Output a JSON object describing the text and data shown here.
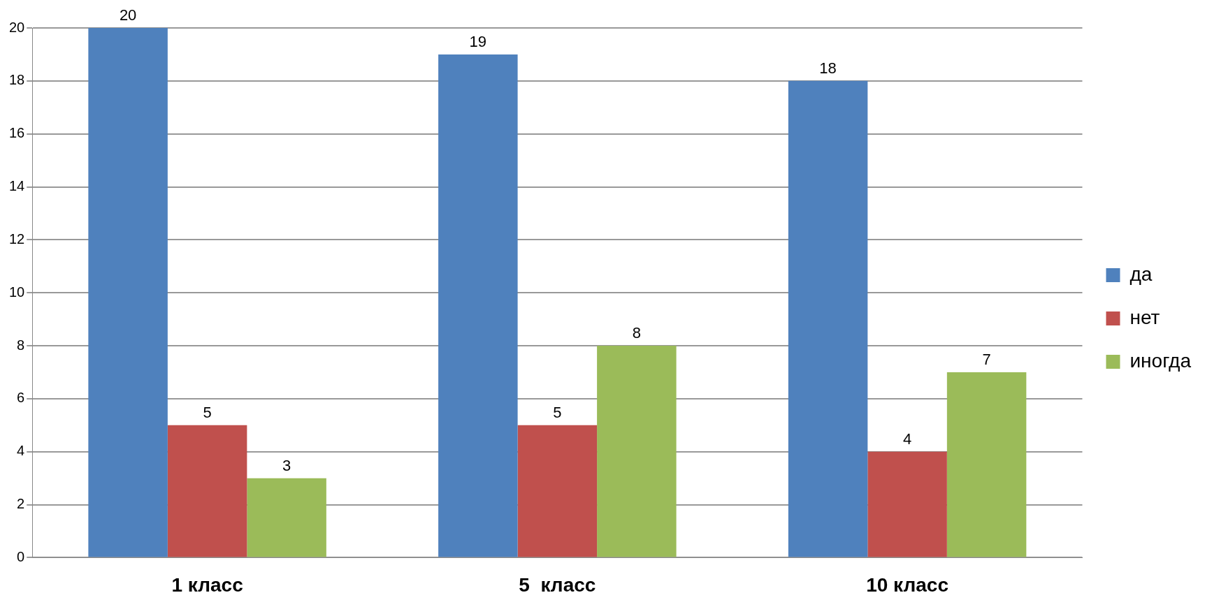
{
  "chart_data": {
    "type": "bar",
    "categories": [
      "1 класс",
      "5  класс",
      "10 класс"
    ],
    "series": [
      {
        "name": "да",
        "color": "#4f81bd",
        "values": [
          20,
          19,
          18
        ]
      },
      {
        "name": "нет",
        "color": "#c0504d",
        "values": [
          5,
          5,
          4
        ]
      },
      {
        "name": "иногда",
        "color": "#9bbb59",
        "values": [
          3,
          8,
          7
        ]
      }
    ],
    "ylim": [
      0,
      20
    ],
    "yticks": [
      0,
      2,
      4,
      6,
      8,
      10,
      12,
      14,
      16,
      18,
      20
    ],
    "grid": "y",
    "legend": "right",
    "data_labels": true
  }
}
